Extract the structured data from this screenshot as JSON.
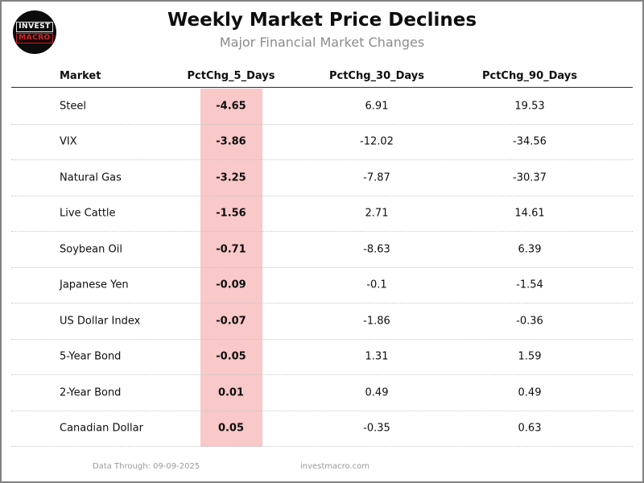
{
  "logo": {
    "line1": "INVEST",
    "line2": "MACRO"
  },
  "header": {
    "title": "Weekly Market Price Declines",
    "subtitle": "Major Financial Market Changes"
  },
  "table": {
    "columns": [
      "Market",
      "PctChg_5_Days",
      "PctChg_30_Days",
      "PctChg_90_Days"
    ],
    "highlight_column": "PctChg_5_Days",
    "highlight_color": "#f9c8c8",
    "rows": [
      {
        "market": "Steel",
        "pctchg_5_days": "-4.65",
        "pctchg_30_days": "6.91",
        "pctchg_90_days": "19.53"
      },
      {
        "market": "VIX",
        "pctchg_5_days": "-3.86",
        "pctchg_30_days": "-12.02",
        "pctchg_90_days": "-34.56"
      },
      {
        "market": "Natural Gas",
        "pctchg_5_days": "-3.25",
        "pctchg_30_days": "-7.87",
        "pctchg_90_days": "-30.37"
      },
      {
        "market": "Live Cattle",
        "pctchg_5_days": "-1.56",
        "pctchg_30_days": "2.71",
        "pctchg_90_days": "14.61"
      },
      {
        "market": "Soybean Oil",
        "pctchg_5_days": "-0.71",
        "pctchg_30_days": "-8.63",
        "pctchg_90_days": "6.39"
      },
      {
        "market": "Japanese Yen",
        "pctchg_5_days": "-0.09",
        "pctchg_30_days": "-0.1",
        "pctchg_90_days": "-1.54"
      },
      {
        "market": "US Dollar Index",
        "pctchg_5_days": "-0.07",
        "pctchg_30_days": "-1.86",
        "pctchg_90_days": "-0.36"
      },
      {
        "market": "5-Year Bond",
        "pctchg_5_days": "-0.05",
        "pctchg_30_days": "1.31",
        "pctchg_90_days": "1.59"
      },
      {
        "market": "2-Year Bond",
        "pctchg_5_days": "0.01",
        "pctchg_30_days": "0.49",
        "pctchg_90_days": "0.49"
      },
      {
        "market": "Canadian Dollar",
        "pctchg_5_days": "0.05",
        "pctchg_30_days": "-0.35",
        "pctchg_90_days": "0.63"
      }
    ]
  },
  "footer": {
    "data_through": "Data Through: 09-09-2025",
    "site": "investmacro.com"
  },
  "chart_data": {
    "type": "table",
    "title": "Weekly Market Price Declines",
    "subtitle": "Major Financial Market Changes",
    "columns": [
      "Market",
      "PctChg_5_Days",
      "PctChg_30_Days",
      "PctChg_90_Days"
    ],
    "rows": [
      [
        "Steel",
        -4.65,
        6.91,
        19.53
      ],
      [
        "VIX",
        -3.86,
        -12.02,
        -34.56
      ],
      [
        "Natural Gas",
        -3.25,
        -7.87,
        -30.37
      ],
      [
        "Live Cattle",
        -1.56,
        2.71,
        14.61
      ],
      [
        "Soybean Oil",
        -0.71,
        -8.63,
        6.39
      ],
      [
        "Japanese Yen",
        -0.09,
        -0.1,
        -1.54
      ],
      [
        "US Dollar Index",
        -0.07,
        -1.86,
        -0.36
      ],
      [
        "5-Year Bond",
        -0.05,
        1.31,
        1.59
      ],
      [
        "2-Year Bond",
        0.01,
        0.49,
        0.49
      ],
      [
        "Canadian Dollar",
        0.05,
        -0.35,
        0.63
      ]
    ],
    "notes": "PctChg_5_Days column highlighted pink; sorted ascending by 5-day change",
    "highlight_color": "#f9c8c8"
  }
}
